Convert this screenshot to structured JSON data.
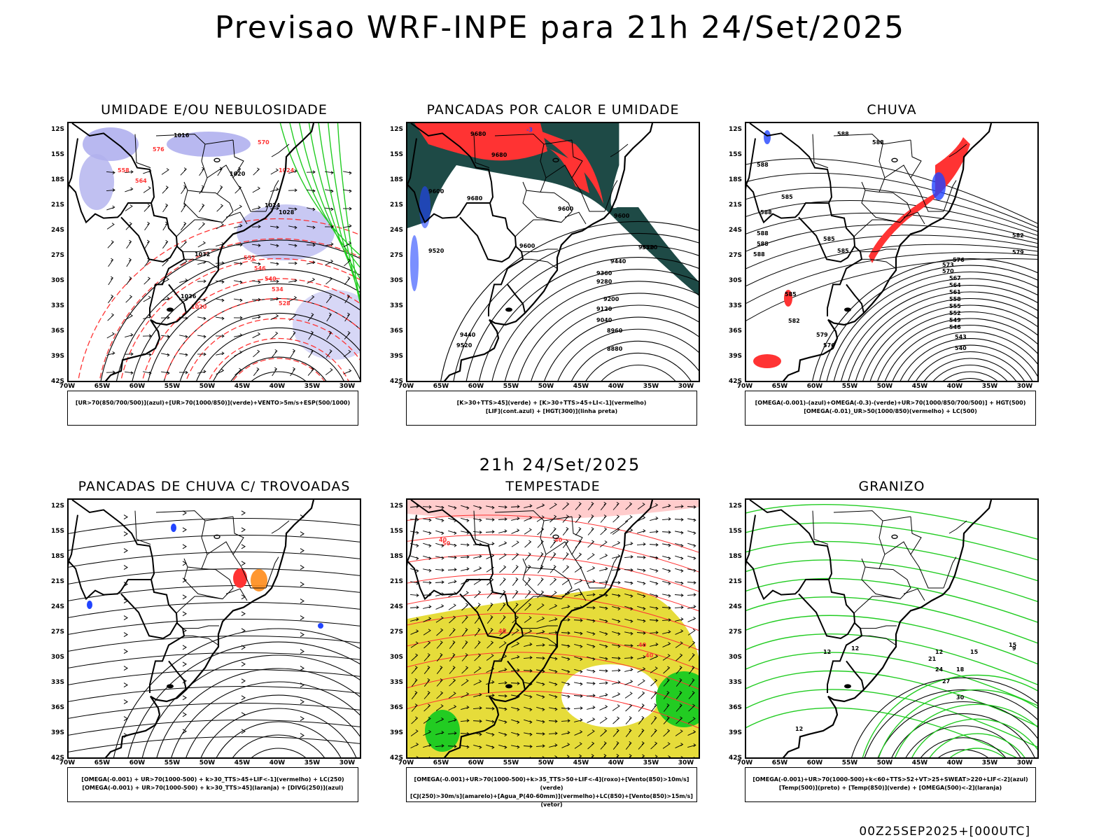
{
  "title": "Previsao WRF-INPE  para 21h 24/Set/2025",
  "mid_title": "21h 24/Set/2025",
  "footer": "00Z25SEP2025+[000UTC]",
  "lat_labels": [
    "12S",
    "15S",
    "18S",
    "21S",
    "24S",
    "27S",
    "30S",
    "33S",
    "36S",
    "39S",
    "42S"
  ],
  "lon_labels": [
    "70W",
    "65W",
    "60W",
    "55W",
    "50W",
    "45W",
    "40W",
    "35W",
    "30W"
  ],
  "colors": {
    "red": "#ff3333",
    "green": "#22cc22",
    "blue": "#2244ff",
    "lavender": "#b0b0ee",
    "darkteal": "#1e4a46",
    "yellow": "#e6dc3a",
    "orange": "#ff8c1a"
  },
  "panels": [
    {
      "id": "umidade",
      "title": "UMIDADE E/OU NEBULOSIDADE",
      "legend": [
        "[UR>70(850/700/500)](azul)+[UR>70(1000/850)](verde)+VENTO>5m/s+ESP(500/1000)"
      ],
      "contour_labels": [
        "1016",
        "1020",
        "1024",
        "1028",
        "1032",
        "1036",
        "1020",
        "1024",
        "570",
        "576",
        "564",
        "558",
        "552",
        "546",
        "540",
        "534",
        "528"
      ]
    },
    {
      "id": "pancadas-calor",
      "title": "PANCADAS POR CALOR E UMIDADE",
      "legend": [
        "[K>30+TTS>45](verde) + [K>30+TTS>45+LI<-1](vermelho)",
        "[LIF](cont.azul) + [HGT(300)](linha preta)"
      ],
      "contour_labels": [
        "9680",
        "9680",
        "9600",
        "9680",
        "9600",
        "9600",
        "9520",
        "9600",
        "9520",
        "9440",
        "9360",
        "9280",
        "9200",
        "9120",
        "9040",
        "8960",
        "8880",
        "9520",
        "9440",
        "9520",
        "-3"
      ]
    },
    {
      "id": "chuva",
      "title": "CHUVA",
      "legend": [
        "[OMEGA(-0.001)-(azul)+OMEGA(-0.3)-(verde)+UR>70(1000/850/700/500)] + HGT(500)",
        "[OMEGA(-0.01)_UR>50(1000/850)(vermelho) + LC(500)"
      ],
      "contour_labels": [
        "588",
        "588",
        "588",
        "585",
        "588",
        "588",
        "588",
        "588",
        "585",
        "585",
        "582",
        "579",
        "576",
        "573",
        "570",
        "567",
        "564",
        "561",
        "558",
        "555",
        "552",
        "549",
        "546",
        "543",
        "540",
        "585",
        "582",
        "579",
        "576"
      ]
    },
    {
      "id": "trovoadas",
      "title": "PANCADAS DE CHUVA C/ TROVOADAS",
      "legend": [
        "[OMEGA(-0.001) + UR>70(1000-500) + k>30_TTS>45+LIF<-1](vermelho) + LC(250)",
        "[OMEGA(-0.001) + UR>70(1000-500) + k>30_TTS>45](laranja) + [DIVG(250)](azul)"
      ],
      "contour_labels": []
    },
    {
      "id": "tempestade",
      "title": "TEMPESTADE",
      "legend": [
        "[OMEGA(-0.001)+UR>70(1000-500)+k>35_TTS>50+LIF<-4](roxo)+[Vento(850)>10m/s](verde)",
        "[CJ(250)>30m/s](amarelo)+[Agua_P(40-60mm)](vermelho)+LC(850)+[Vento(850)>15m/s](vetor)"
      ],
      "contour_labels": [
        "40",
        "50",
        "40",
        "40",
        "40",
        "40"
      ]
    },
    {
      "id": "granizo",
      "title": "GRANIZO",
      "legend": [
        "[OMEGA(-0.001)+UR>70(1000-500)+k<60+TTS>52+VT>25+SWEAT>220+LIF<-2](azul)",
        "[Temp(500)](preto) + [Temp(850)](verde) + [OMEGA(500)<-2](laranja)"
      ],
      "contour_labels": [
        "12",
        "15",
        "18",
        "21",
        "24",
        "27",
        "30",
        "12",
        "15",
        "12",
        "12",
        "9"
      ]
    }
  ]
}
